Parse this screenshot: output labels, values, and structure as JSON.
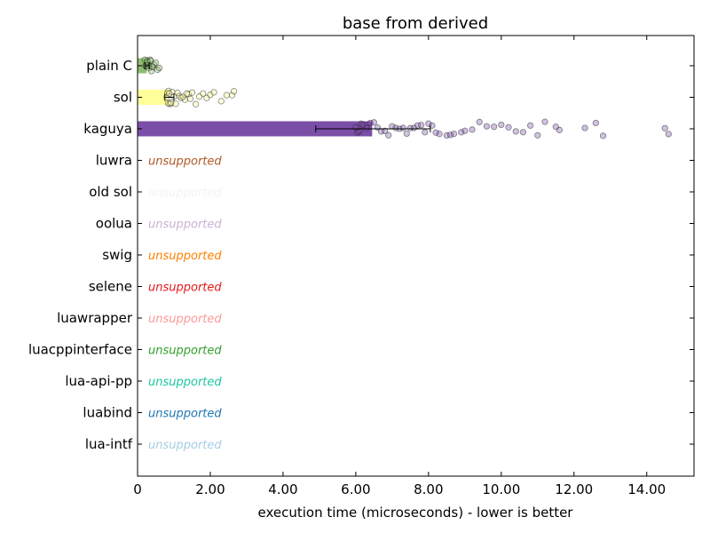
{
  "chart_data": {
    "type": "bar",
    "orientation": "horizontal",
    "title": "base from derived",
    "xlabel": "execution time (microseconds) - lower is better",
    "ylabel": "",
    "xlim": [
      0,
      15.3
    ],
    "x_ticks": [
      "0",
      "2.00",
      "4.00",
      "6.00",
      "8.00",
      "10.00",
      "12.00",
      "14.00"
    ],
    "x_tick_values": [
      0,
      2,
      4,
      6,
      8,
      10,
      12,
      14
    ],
    "unsupported_label": "unsupported",
    "series": [
      {
        "name": "plain C",
        "value": 0.25,
        "err_low": 0.2,
        "err_high": 0.32,
        "color": "#8dbf6e",
        "supported": true,
        "samples": [
          0.22,
          0.24,
          0.26,
          0.28,
          0.3,
          0.32,
          0.35,
          0.38,
          0.42,
          0.45,
          0.5,
          0.55,
          0.6,
          0.2,
          0.23,
          0.27,
          0.31,
          0.36,
          0.4
        ]
      },
      {
        "name": "sol",
        "value": 0.83,
        "err_low": 0.75,
        "err_high": 1.0,
        "color": "#ffff99",
        "supported": true,
        "samples": [
          0.8,
          0.82,
          0.85,
          0.88,
          0.9,
          0.95,
          1.0,
          1.05,
          1.1,
          1.15,
          1.2,
          1.3,
          1.4,
          1.5,
          1.6,
          1.7,
          1.8,
          1.9,
          2.0,
          2.1,
          2.3,
          2.45,
          2.6,
          2.65,
          0.84,
          0.87,
          0.92,
          1.25,
          1.35,
          1.45
        ]
      },
      {
        "name": "kaguya",
        "value": 6.45,
        "err_low": 4.9,
        "err_high": 8.05,
        "color": "#7b4ea8",
        "supported": true,
        "samples": [
          6.0,
          6.05,
          6.1,
          6.15,
          6.2,
          6.3,
          6.4,
          6.5,
          6.6,
          6.7,
          6.8,
          6.9,
          7.0,
          7.1,
          7.2,
          7.3,
          7.4,
          7.5,
          7.6,
          7.7,
          7.8,
          7.9,
          8.0,
          8.1,
          8.2,
          8.3,
          8.5,
          8.6,
          8.7,
          8.9,
          9.0,
          9.2,
          9.4,
          9.6,
          9.8,
          10.0,
          10.2,
          10.4,
          10.6,
          10.8,
          11.0,
          11.2,
          11.5,
          11.6,
          12.3,
          12.6,
          12.8,
          14.5,
          14.6
        ]
      },
      {
        "name": "luwra",
        "value": null,
        "color": "#b15928",
        "supported": false
      },
      {
        "name": "old sol",
        "value": null,
        "color": "#f4f4f4",
        "supported": false
      },
      {
        "name": "oolua",
        "value": null,
        "color": "#cab2d6",
        "supported": false
      },
      {
        "name": "swig",
        "value": null,
        "color": "#ff7f00",
        "supported": false
      },
      {
        "name": "selene",
        "value": null,
        "color": "#e31a1c",
        "supported": false
      },
      {
        "name": "luawrapper",
        "value": null,
        "color": "#fb9a99",
        "supported": false
      },
      {
        "name": "luacppinterface",
        "value": null,
        "color": "#33a02c",
        "supported": false
      },
      {
        "name": "lua-api-pp",
        "value": null,
        "color": "#1cc7a0",
        "supported": false
      },
      {
        "name": "luabind",
        "value": null,
        "color": "#1f78b4",
        "supported": false
      },
      {
        "name": "lua-intf",
        "value": null,
        "color": "#a6cee3",
        "supported": false
      }
    ],
    "grid": false,
    "legend": "none"
  }
}
